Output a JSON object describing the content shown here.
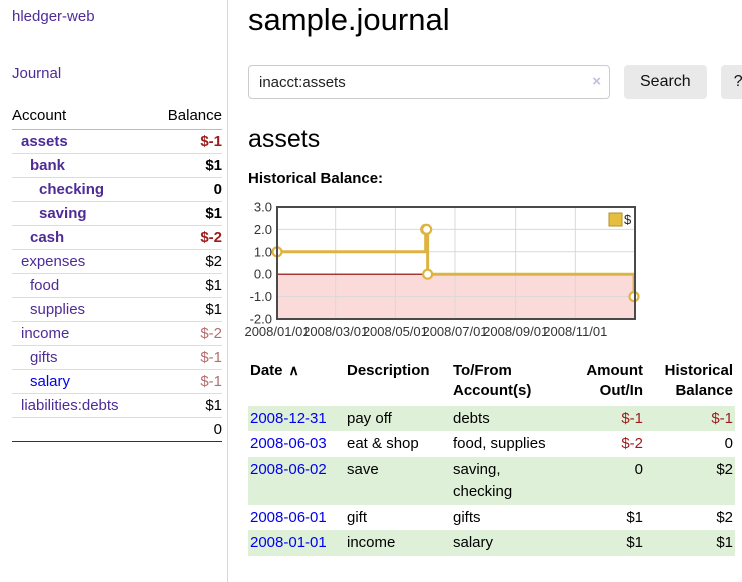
{
  "app": {
    "title": "hledger-web"
  },
  "colors": {
    "purple_link": "#4f2b96",
    "blue_link": "#0000ee",
    "negative_strong": "#9d1b1b",
    "negative_soft": "#b56e6e",
    "row_shade_green": "#dff0d8",
    "clear_icon": "#c6bce0",
    "chart_line_gold": "#deb440"
  },
  "sidebar": {
    "journal_link": "Journal",
    "accounts_table": {
      "headers": [
        "Account",
        "Balance"
      ],
      "rows": [
        {
          "name": "assets",
          "depth": 1,
          "bold": true,
          "balance": "$-1",
          "negative": true,
          "link_style": "purple"
        },
        {
          "name": "bank",
          "depth": 2,
          "bold": true,
          "balance": "$1",
          "negative": false,
          "link_style": "purple"
        },
        {
          "name": "checking",
          "depth": 3,
          "bold": true,
          "balance": "0",
          "negative": false,
          "link_style": "purple"
        },
        {
          "name": "saving",
          "depth": 3,
          "bold": true,
          "balance": "$1",
          "negative": false,
          "link_style": "purple"
        },
        {
          "name": "cash",
          "depth": 2,
          "bold": true,
          "balance": "$-2",
          "negative": true,
          "link_style": "purple"
        },
        {
          "name": "expenses",
          "depth": 1,
          "bold": false,
          "balance": "$2",
          "negative": false,
          "link_style": "purple"
        },
        {
          "name": "food",
          "depth": 2,
          "bold": false,
          "balance": "$1",
          "negative": false,
          "link_style": "purple"
        },
        {
          "name": "supplies",
          "depth": 2,
          "bold": false,
          "balance": "$1",
          "negative": false,
          "link_style": "purple"
        },
        {
          "name": "income",
          "depth": 1,
          "bold": false,
          "balance": "$-2",
          "negative": true,
          "link_style": "purple"
        },
        {
          "name": "gifts",
          "depth": 2,
          "bold": false,
          "balance": "$-1",
          "negative": true,
          "link_style": "purple"
        },
        {
          "name": "salary",
          "depth": 2,
          "bold": false,
          "balance": "$-1",
          "negative": true,
          "link_style": "blue"
        },
        {
          "name": "liabilities:debts",
          "depth": 1,
          "bold": false,
          "balance": "$1",
          "negative": false,
          "link_style": "purple"
        }
      ],
      "total": "0"
    }
  },
  "main": {
    "title": "sample.journal",
    "search": {
      "value": "inacct:assets",
      "clear_icon": "×",
      "search_button": "Search",
      "help_button": "?"
    },
    "account_heading": "assets",
    "chart_label": "Historical Balance:"
  },
  "chart_data": {
    "type": "line",
    "step": true,
    "title": "Historical Balance:",
    "ylim": [
      -2.0,
      3.0
    ],
    "x_axis": {
      "range": [
        "2008-01-01",
        "2009-01-01"
      ],
      "ticks": [
        {
          "date": "2008-01-01",
          "label": "2008/01/01"
        },
        {
          "date": "2008-03-01",
          "label": "2008/03/01"
        },
        {
          "date": "2008-05-01",
          "label": "2008/05/01"
        },
        {
          "date": "2008-07-01",
          "label": "2008/07/01"
        },
        {
          "date": "2008-09-01",
          "label": "2008/09/01"
        },
        {
          "date": "2008-11-01",
          "label": "2008/11/01"
        }
      ]
    },
    "y_axis": {
      "ticks": [
        {
          "value": 3,
          "label": "3.0"
        },
        {
          "value": 2,
          "label": "2.0"
        },
        {
          "value": 1,
          "label": "1.0"
        },
        {
          "value": 0,
          "label": "0.0"
        },
        {
          "value": -1,
          "label": "-1.0"
        },
        {
          "value": -2,
          "label": "-2.0"
        }
      ]
    },
    "series": [
      {
        "name": "$",
        "color": "#deb440",
        "points": [
          {
            "date": "2008-01-01",
            "balance": 1
          },
          {
            "date": "2008-06-01",
            "balance": 2
          },
          {
            "date": "2008-06-02",
            "balance": 2
          },
          {
            "date": "2008-06-03",
            "balance": 0
          },
          {
            "date": "2008-12-31",
            "balance": -1
          }
        ]
      }
    ],
    "legend": {
      "label": "$",
      "position": "top-right",
      "swatch_fill": "#e5bd3f",
      "swatch_border": "#b3922b"
    },
    "negative_region_color": "#fbdada",
    "zero_line_color": "#8b0000",
    "grid": true
  },
  "transactions": {
    "headers": [
      "Date",
      "Description",
      "To/From Account(s)",
      "Amount Out/In",
      "Historical Balance"
    ],
    "sort_icon": "∧",
    "rows": [
      {
        "date": "2008-12-31",
        "description": "pay off",
        "accounts": "debts",
        "amount": "$-1",
        "balance": "$-1",
        "shaded": true
      },
      {
        "date": "2008-06-03",
        "description": "eat & shop",
        "accounts": "food, supplies",
        "amount": "$-2",
        "balance": "0",
        "shaded": false
      },
      {
        "date": "2008-06-02",
        "description": "save",
        "accounts": "saving, checking",
        "amount": "0",
        "balance": "$2",
        "shaded": true
      },
      {
        "date": "2008-06-01",
        "description": "gift",
        "accounts": "gifts",
        "amount": "$1",
        "balance": "$2",
        "shaded": false
      },
      {
        "date": "2008-01-01",
        "description": "income",
        "accounts": "salary",
        "amount": "$1",
        "balance": "$1",
        "shaded": true
      }
    ]
  }
}
